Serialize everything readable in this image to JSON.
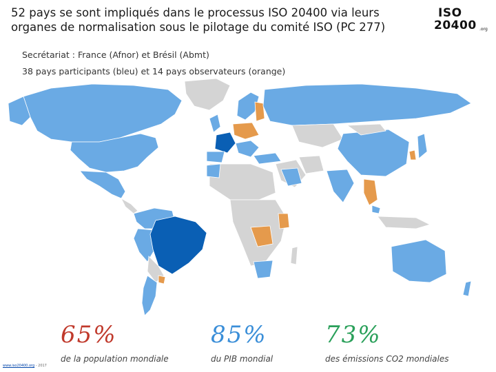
{
  "header": {
    "title": "52 pays se sont impliqués dans le processus ISO 20400 via leurs organes de normalisation sous le pilotage du comité ISO (PC 277)",
    "logo_line1": "ISO",
    "logo_line2": "20400",
    "logo_suffix": ".org"
  },
  "subtitle": {
    "line1": "Secrétariat : France (Afnor) et Brésil (Abmt)",
    "line2": "38 pays participants (bleu) et 14 pays observateurs (orange)"
  },
  "map": {
    "colors": {
      "land": "#d4d4d4",
      "participant": "#6aaae4",
      "secretariat": "#0a5fb4",
      "observer": "#e59a4c"
    }
  },
  "stats": [
    {
      "value": "65%",
      "label": "de la population mondiale",
      "color": "#c0392b"
    },
    {
      "value": "85%",
      "label": "du PIB mondial",
      "color": "#3a8ed8"
    },
    {
      "value": "73%",
      "label": "des émissions CO2 mondiales",
      "color": "#2aa05a"
    }
  ],
  "footer": {
    "link": "www.iso20400.org",
    "year": "- 2017"
  }
}
